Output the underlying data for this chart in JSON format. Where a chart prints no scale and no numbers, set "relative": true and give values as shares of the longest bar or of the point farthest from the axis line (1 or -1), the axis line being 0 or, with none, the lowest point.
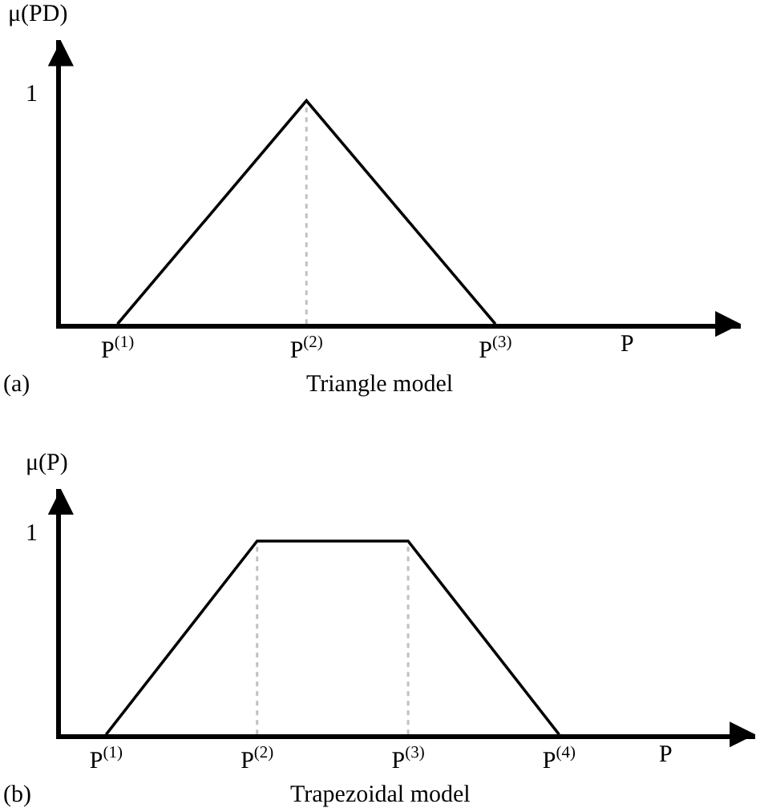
{
  "chart_data": [
    {
      "type": "line",
      "title": "Triangle model",
      "ylabel": "μ(PD)",
      "xlabel": "P",
      "annotations": [
        "(a)",
        "1"
      ],
      "categories": [
        "P$^{(1)}$",
        "P$^{(2)}$",
        "P$^{(3)}$"
      ],
      "series": [
        {
          "color": "#000000",
          "values": [
            0,
            1,
            0
          ]
        }
      ],
      "ref_lines": [
        {
          "axis": "x",
          "value": "P$^{(2)}$",
          "color": "#c0c0c0",
          "line_style": "dotted"
        }
      ],
      "relative": true,
      "grid": false,
      "marker": "none",
      "line_style": "solid"
    },
    {
      "type": "line",
      "title": "Trapezoidal model",
      "ylabel": "μ(P)",
      "xlabel": "P",
      "annotations": [
        "(b)",
        "1"
      ],
      "categories": [
        "P$^{(1)}$",
        "P$^{(2)}$",
        "P$^{(3)}$",
        "P$^{(4)}$"
      ],
      "series": [
        {
          "color": "#000000",
          "values": [
            0,
            1,
            1,
            0
          ]
        }
      ],
      "ref_lines": [
        {
          "axis": "x",
          "value": "P$^{(2)}$",
          "color": "#c0c0c0",
          "line_style": "dotted"
        },
        {
          "axis": "x",
          "value": "P$^{(3)}$",
          "color": "#c0c0c0",
          "line_style": "dotted"
        }
      ],
      "relative": true,
      "grid": false,
      "marker": "none",
      "line_style": "solid"
    }
  ]
}
